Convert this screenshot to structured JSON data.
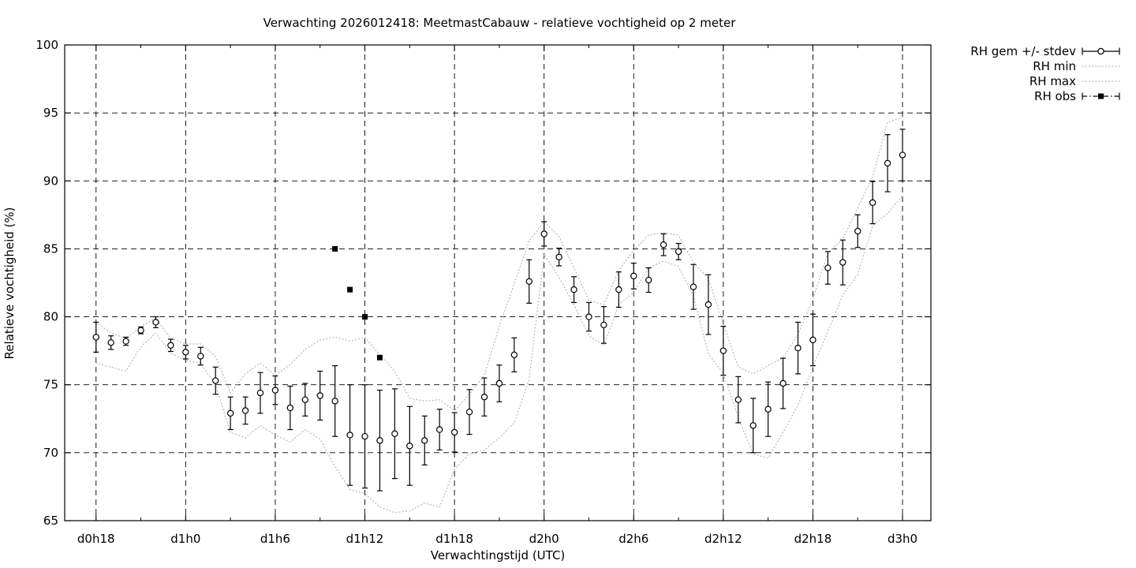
{
  "title": "Verwachting 2026012418: MeetmastCabauw - relatieve vochtigheid op 2 meter",
  "chart_data": {
    "type": "line",
    "title": "Verwachting 2026012418: MeetmastCabauw - relatieve vochtigheid op 2 meter",
    "xlabel": "Verwachtingstijd (UTC)",
    "ylabel": "Relatieve vochtigheid (%)",
    "ylim": [
      65,
      100
    ],
    "ytick_step": 5,
    "yticks": [
      65,
      70,
      75,
      80,
      85,
      90,
      95,
      100
    ],
    "x_domain_hours": [
      15.9,
      73.9
    ],
    "xticks": [
      {
        "hour": 18,
        "label": "d0h18"
      },
      {
        "hour": 24,
        "label": "d1h0"
      },
      {
        "hour": 30,
        "label": "d1h6"
      },
      {
        "hour": 36,
        "label": "d1h12"
      },
      {
        "hour": 42,
        "label": "d1h18"
      },
      {
        "hour": 48,
        "label": "d2h0"
      },
      {
        "hour": 54,
        "label": "d2h6"
      },
      {
        "hour": 60,
        "label": "d2h12"
      },
      {
        "hour": 66,
        "label": "d2h18"
      },
      {
        "hour": 72,
        "label": "d3h0"
      }
    ],
    "minor_xtick_step_hours": 3,
    "grid": true,
    "legend_position": "outside-top-right",
    "colors": {
      "foreground": "#000000",
      "envelope_gray": "#b5b5b5",
      "background": "#ffffff"
    },
    "hours": [
      18,
      19,
      20,
      21,
      22,
      23,
      24,
      25,
      26,
      27,
      28,
      29,
      30,
      31,
      32,
      33,
      34,
      35,
      36,
      37,
      38,
      39,
      40,
      41,
      42,
      43,
      44,
      45,
      46,
      47,
      48,
      49,
      50,
      51,
      52,
      53,
      54,
      55,
      56,
      57,
      58,
      59,
      60,
      61,
      62,
      63,
      64,
      65,
      66,
      67,
      68,
      69,
      70,
      71,
      72
    ],
    "series": [
      {
        "name": "RH gem +/- stdev",
        "style": "errorbar-points",
        "marker": "circle-open",
        "color": "#000000",
        "values": [
          78.5,
          78.1,
          78.2,
          79.0,
          79.6,
          77.9,
          77.4,
          77.1,
          75.3,
          72.9,
          73.1,
          74.4,
          74.6,
          73.3,
          73.9,
          74.2,
          73.8,
          71.3,
          71.2,
          70.9,
          71.4,
          70.5,
          70.9,
          71.7,
          71.5,
          73.0,
          74.1,
          75.1,
          77.2,
          82.6,
          86.1,
          84.4,
          82.0,
          80.0,
          79.4,
          82.0,
          83.0,
          82.7,
          85.3,
          84.8,
          82.2,
          80.9,
          77.5,
          73.9,
          72.0,
          73.2,
          75.1,
          77.7,
          78.3,
          83.6,
          84.0,
          86.3,
          88.4,
          91.3,
          91.9
        ],
        "stdev": [
          1.1,
          0.5,
          0.3,
          0.25,
          0.4,
          0.45,
          0.5,
          0.65,
          1.0,
          1.2,
          1.0,
          1.5,
          1.05,
          1.6,
          1.2,
          1.8,
          2.6,
          3.7,
          3.8,
          3.7,
          3.3,
          2.9,
          1.8,
          1.5,
          1.45,
          1.65,
          1.4,
          1.35,
          1.25,
          1.6,
          0.9,
          0.65,
          0.95,
          1.05,
          1.35,
          1.3,
          0.95,
          0.9,
          0.8,
          0.6,
          1.65,
          2.2,
          1.8,
          1.7,
          2.0,
          2.0,
          1.85,
          1.9,
          1.9,
          1.2,
          1.65,
          1.2,
          1.55,
          2.1,
          1.9
        ]
      },
      {
        "name": "RH min",
        "style": "dotted-line",
        "color": "#b5b5b5",
        "values": [
          76.6,
          76.3,
          76.0,
          77.8,
          78.8,
          77.3,
          76.8,
          76.6,
          75.0,
          71.5,
          71.1,
          72.0,
          71.3,
          70.8,
          71.7,
          71.0,
          69.0,
          67.3,
          67.0,
          66.0,
          65.6,
          65.7,
          66.3,
          66.0,
          68.8,
          69.9,
          70.2,
          71.1,
          72.2,
          75.4,
          84.6,
          82.9,
          80.9,
          78.6,
          77.9,
          80.9,
          81.8,
          83.6,
          84.1,
          83.7,
          81.5,
          77.3,
          75.8,
          72.6,
          69.9,
          69.6,
          71.5,
          73.5,
          76.3,
          78.9,
          81.6,
          83.1,
          86.7,
          87.6,
          88.9
        ]
      },
      {
        "name": "RH max",
        "style": "dotted-line",
        "color": "#b5b5b5",
        "values": [
          79.6,
          78.8,
          78.4,
          79.3,
          79.9,
          78.4,
          78.0,
          78.0,
          77.1,
          74.4,
          75.8,
          76.6,
          75.7,
          76.5,
          77.6,
          78.3,
          78.5,
          78.2,
          78.5,
          77.2,
          76.0,
          74.0,
          73.8,
          73.9,
          73.1,
          74.3,
          75.7,
          79.3,
          82.4,
          85.6,
          87.0,
          85.9,
          83.6,
          81.2,
          80.9,
          83.4,
          84.9,
          86.0,
          86.2,
          86.0,
          84.0,
          82.8,
          79.5,
          76.3,
          75.8,
          76.4,
          77.0,
          78.7,
          81.3,
          84.7,
          85.7,
          88.0,
          90.3,
          94.3,
          94.7
        ]
      },
      {
        "name": "RH obs",
        "style": "errorbar-points",
        "marker": "square-filled",
        "color": "#000000",
        "hours": [
          34,
          35,
          36,
          37
        ],
        "hour_labels": [
          "d1h10",
          "d1h11",
          "d1h12",
          "d1h13"
        ],
        "values": [
          85.0,
          82.0,
          80.0,
          77.0
        ]
      }
    ]
  }
}
